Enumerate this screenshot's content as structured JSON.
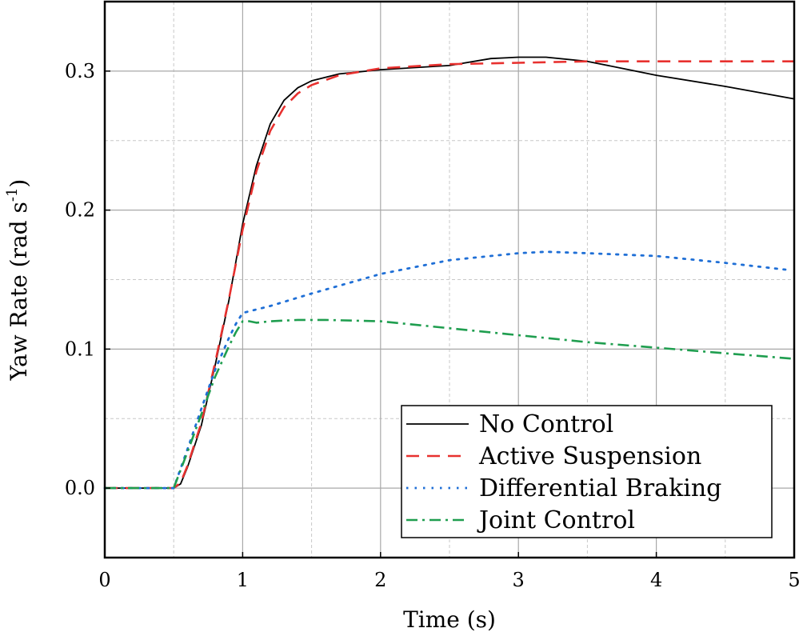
{
  "chart_data": {
    "type": "line",
    "title": "",
    "xlabel": "Time (s)",
    "ylabel": "Yaw Rate (rad s",
    "ylabel_sup": "-1",
    "ylabel_close": ")",
    "xlim": [
      0,
      5
    ],
    "ylim": [
      -0.05,
      0.35
    ],
    "x_ticks": [
      0,
      1,
      2,
      3,
      4,
      5
    ],
    "x_tick_labels": [
      "0",
      "1",
      "2",
      "3",
      "4",
      "5"
    ],
    "y_ticks": [
      0.0,
      0.1,
      0.2,
      0.3
    ],
    "y_tick_labels": [
      "0.0",
      "0.1",
      "0.2",
      "0.3"
    ],
    "minor_x_ticks": [
      0.5,
      1.5,
      2.5,
      3.5,
      4.5
    ],
    "minor_y_ticks": [
      -0.05,
      0.05,
      0.15,
      0.25
    ],
    "grid": true,
    "legend_position": "bottom-right",
    "series": [
      {
        "name": "No Control",
        "color": "#000000",
        "dash": "solid",
        "x": [
          0,
          0.5,
          0.55,
          0.6,
          0.7,
          0.8,
          0.9,
          1.0,
          1.1,
          1.2,
          1.3,
          1.4,
          1.5,
          1.7,
          2.0,
          2.5,
          2.8,
          3.0,
          3.2,
          3.5,
          3.8,
          4.0,
          4.5,
          5.0
        ],
        "y": [
          0,
          0,
          0.003,
          0.015,
          0.045,
          0.088,
          0.135,
          0.19,
          0.232,
          0.262,
          0.279,
          0.288,
          0.293,
          0.298,
          0.301,
          0.304,
          0.309,
          0.31,
          0.31,
          0.307,
          0.301,
          0.297,
          0.289,
          0.28
        ]
      },
      {
        "name": "Active Suspension",
        "color": "#e8312f",
        "dash": "dashed",
        "x": [
          0,
          0.5,
          0.55,
          0.6,
          0.7,
          0.8,
          0.9,
          1.0,
          1.1,
          1.2,
          1.3,
          1.4,
          1.5,
          1.7,
          2.0,
          2.5,
          3.0,
          3.5,
          4.0,
          4.5,
          5.0
        ],
        "y": [
          0,
          0,
          0.004,
          0.016,
          0.047,
          0.09,
          0.136,
          0.186,
          0.228,
          0.257,
          0.274,
          0.284,
          0.29,
          0.297,
          0.302,
          0.305,
          0.306,
          0.307,
          0.307,
          0.307,
          0.307
        ]
      },
      {
        "name": "Differential Braking",
        "color": "#1f6fd6",
        "dash": "dotted",
        "x": [
          0,
          0.5,
          0.6,
          0.7,
          0.8,
          0.9,
          0.95,
          1.0,
          1.2,
          1.5,
          2.0,
          2.5,
          3.0,
          3.2,
          3.5,
          4.0,
          4.5,
          4.95
        ],
        "y": [
          0,
          0,
          0.028,
          0.057,
          0.085,
          0.108,
          0.118,
          0.126,
          0.131,
          0.14,
          0.154,
          0.164,
          0.169,
          0.17,
          0.169,
          0.167,
          0.162,
          0.157
        ]
      },
      {
        "name": "Joint Control",
        "color": "#1f9e4f",
        "dash": "dashdot",
        "x": [
          0,
          0.5,
          0.6,
          0.7,
          0.8,
          0.9,
          0.95,
          1.0,
          1.05,
          1.1,
          1.2,
          1.4,
          1.6,
          2.0,
          2.5,
          3.0,
          3.5,
          4.0,
          4.5,
          5.0
        ],
        "y": [
          0,
          0,
          0.026,
          0.053,
          0.08,
          0.102,
          0.112,
          0.12,
          0.12,
          0.119,
          0.12,
          0.121,
          0.121,
          0.12,
          0.115,
          0.11,
          0.105,
          0.101,
          0.097,
          0.093
        ]
      }
    ]
  }
}
